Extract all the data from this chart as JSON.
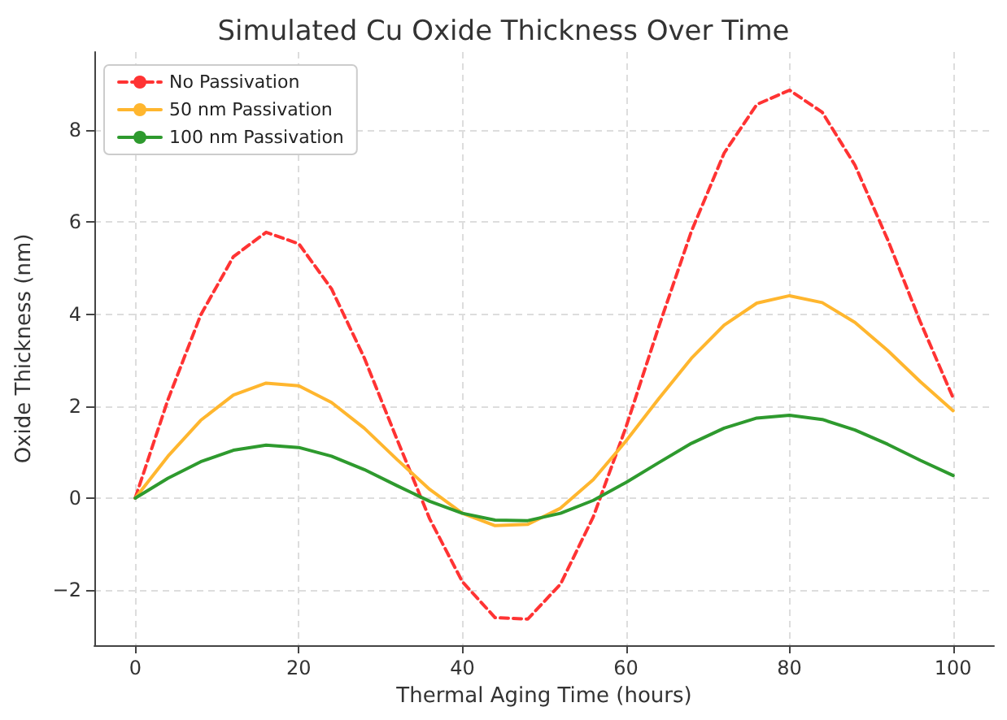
{
  "chart_data": {
    "type": "line",
    "title": "Simulated Cu Oxide Thickness Over Time",
    "xlabel": "Thermal Aging Time (hours)",
    "ylabel": "Oxide Thickness (nm)",
    "x": [
      0,
      4,
      8,
      12,
      16,
      20,
      24,
      28,
      32,
      36,
      40,
      44,
      48,
      52,
      56,
      60,
      64,
      68,
      72,
      76,
      80,
      84,
      88,
      92,
      96,
      100
    ],
    "series": [
      {
        "name": "No Passivation",
        "color": "#ff3333",
        "line_style": "dashed",
        "values": [
          0,
          2.14,
          3.98,
          5.25,
          5.78,
          5.53,
          4.55,
          3.05,
          1.28,
          -0.45,
          -1.82,
          -2.6,
          -2.63,
          -1.87,
          -0.41,
          1.54,
          3.72,
          5.8,
          7.5,
          8.56,
          8.87,
          8.39,
          7.24,
          5.62,
          3.83,
          2.18
        ]
      },
      {
        "name": "50 nm Passivation",
        "color": "#ffb62e",
        "line_style": "solid",
        "values": [
          0,
          0.91,
          1.69,
          2.24,
          2.5,
          2.44,
          2.08,
          1.52,
          0.84,
          0.19,
          -0.33,
          -0.6,
          -0.57,
          -0.22,
          0.4,
          1.24,
          2.16,
          3.04,
          3.76,
          4.24,
          4.4,
          4.25,
          3.82,
          3.21,
          2.53,
          1.9
        ]
      },
      {
        "name": "100 nm Passivation",
        "color": "#2e9a2e",
        "line_style": "solid",
        "values": [
          0,
          0.43,
          0.79,
          1.04,
          1.15,
          1.1,
          0.91,
          0.62,
          0.27,
          -0.07,
          -0.33,
          -0.48,
          -0.49,
          -0.33,
          -0.05,
          0.34,
          0.77,
          1.19,
          1.52,
          1.74,
          1.8,
          1.71,
          1.48,
          1.17,
          0.82,
          0.49
        ]
      }
    ],
    "xlim": [
      -5,
      105
    ],
    "xticks": [
      0,
      20,
      40,
      60,
      80,
      100
    ],
    "ylim": [
      -3.2,
      9.7
    ],
    "yticks": [
      -2,
      0,
      2,
      4,
      6,
      8
    ],
    "grid": true,
    "legend": "top left",
    "marker": "none"
  }
}
